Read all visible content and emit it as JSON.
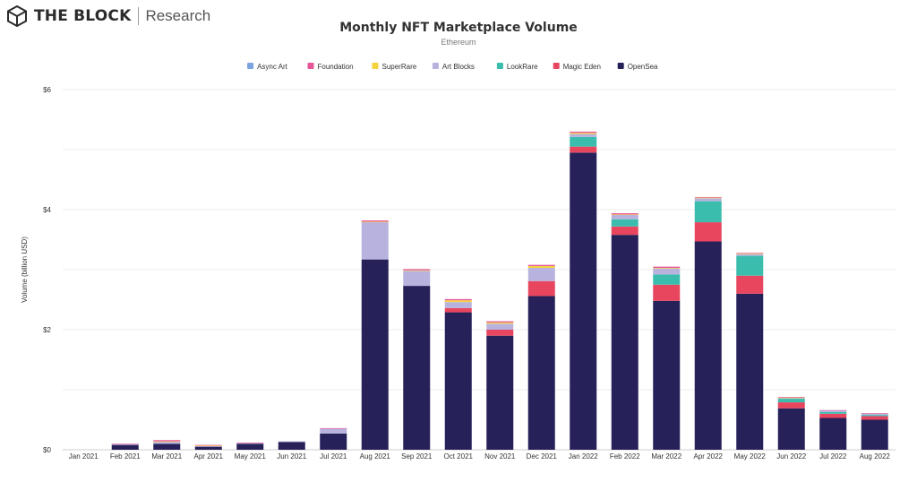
{
  "brand": {
    "name": "THE BLOCK",
    "suffix": "Research",
    "logo_icon": "cube-logo-icon"
  },
  "chart_data": {
    "type": "bar",
    "stacked": true,
    "title": "Monthly NFT Marketplace Volume",
    "subtitle": "Ethereum",
    "ylabel": "Volume (billion USD)",
    "xlabel": "",
    "ylim": [
      0,
      6
    ],
    "yticks": [
      0,
      2,
      4,
      6
    ],
    "ytick_labels": [
      "$0",
      "$2",
      "$4",
      "$6"
    ],
    "grid": true,
    "legend_position": "top-center",
    "categories": [
      "Jan 2021",
      "Feb 2021",
      "Mar 2021",
      "Apr 2021",
      "May 2021",
      "Jun 2021",
      "Jul 2021",
      "Aug 2021",
      "Sep 2021",
      "Oct 2021",
      "Nov 2021",
      "Dec 2021",
      "Jan 2022",
      "Feb 2022",
      "Mar 2022",
      "Apr 2022",
      "May 2022",
      "Jun 2022",
      "Jul 2022",
      "Aug 2022"
    ],
    "series": [
      {
        "name": "OpenSea",
        "color": "#27215a",
        "values": [
          0.0,
          0.08,
          0.1,
          0.05,
          0.1,
          0.13,
          0.27,
          3.17,
          2.73,
          2.29,
          1.9,
          2.56,
          4.95,
          3.58,
          2.48,
          3.47,
          2.6,
          0.69,
          0.53,
          0.5
        ]
      },
      {
        "name": "Magic Eden",
        "color": "#e8465f",
        "values": [
          0,
          0,
          0,
          0,
          0,
          0,
          0,
          0,
          0,
          0.07,
          0.1,
          0.25,
          0.1,
          0.14,
          0.27,
          0.32,
          0.3,
          0.1,
          0.07,
          0.06
        ]
      },
      {
        "name": "LookRare",
        "color": "#3bbdae",
        "values": [
          0,
          0,
          0,
          0,
          0,
          0,
          0,
          0,
          0,
          0,
          0,
          0,
          0.16,
          0.12,
          0.17,
          0.35,
          0.33,
          0.06,
          0.03,
          0.02
        ]
      },
      {
        "name": "Art Blocks",
        "color": "#b7b3de",
        "values": [
          0,
          0.01,
          0.03,
          0.01,
          0.01,
          0.01,
          0.08,
          0.62,
          0.25,
          0.1,
          0.1,
          0.22,
          0.05,
          0.07,
          0.1,
          0.05,
          0.03,
          0.01,
          0.02,
          0.02
        ]
      },
      {
        "name": "SuperRare",
        "color": "#f5d33f",
        "values": [
          0,
          0,
          0.01,
          0.01,
          0,
          0,
          0,
          0.01,
          0.01,
          0.03,
          0.02,
          0.03,
          0.02,
          0.01,
          0.01,
          0.01,
          0.01,
          0.01,
          0,
          0
        ]
      },
      {
        "name": "Foundation",
        "color": "#e6579a",
        "values": [
          0,
          0.01,
          0.02,
          0.01,
          0.01,
          0,
          0.01,
          0.02,
          0.02,
          0.02,
          0.02,
          0.02,
          0.02,
          0.02,
          0.02,
          0.01,
          0.01,
          0.01,
          0.01,
          0.01
        ]
      },
      {
        "name": "Async Art",
        "color": "#7ba4e0",
        "values": [
          0,
          0,
          0,
          0,
          0,
          0,
          0,
          0,
          0,
          0,
          0,
          0,
          0,
          0,
          0,
          0,
          0,
          0,
          0,
          0
        ]
      }
    ],
    "legend_order": [
      "Async Art",
      "Foundation",
      "SuperRare",
      "Art Blocks",
      "LookRare",
      "Magic Eden",
      "OpenSea"
    ]
  }
}
